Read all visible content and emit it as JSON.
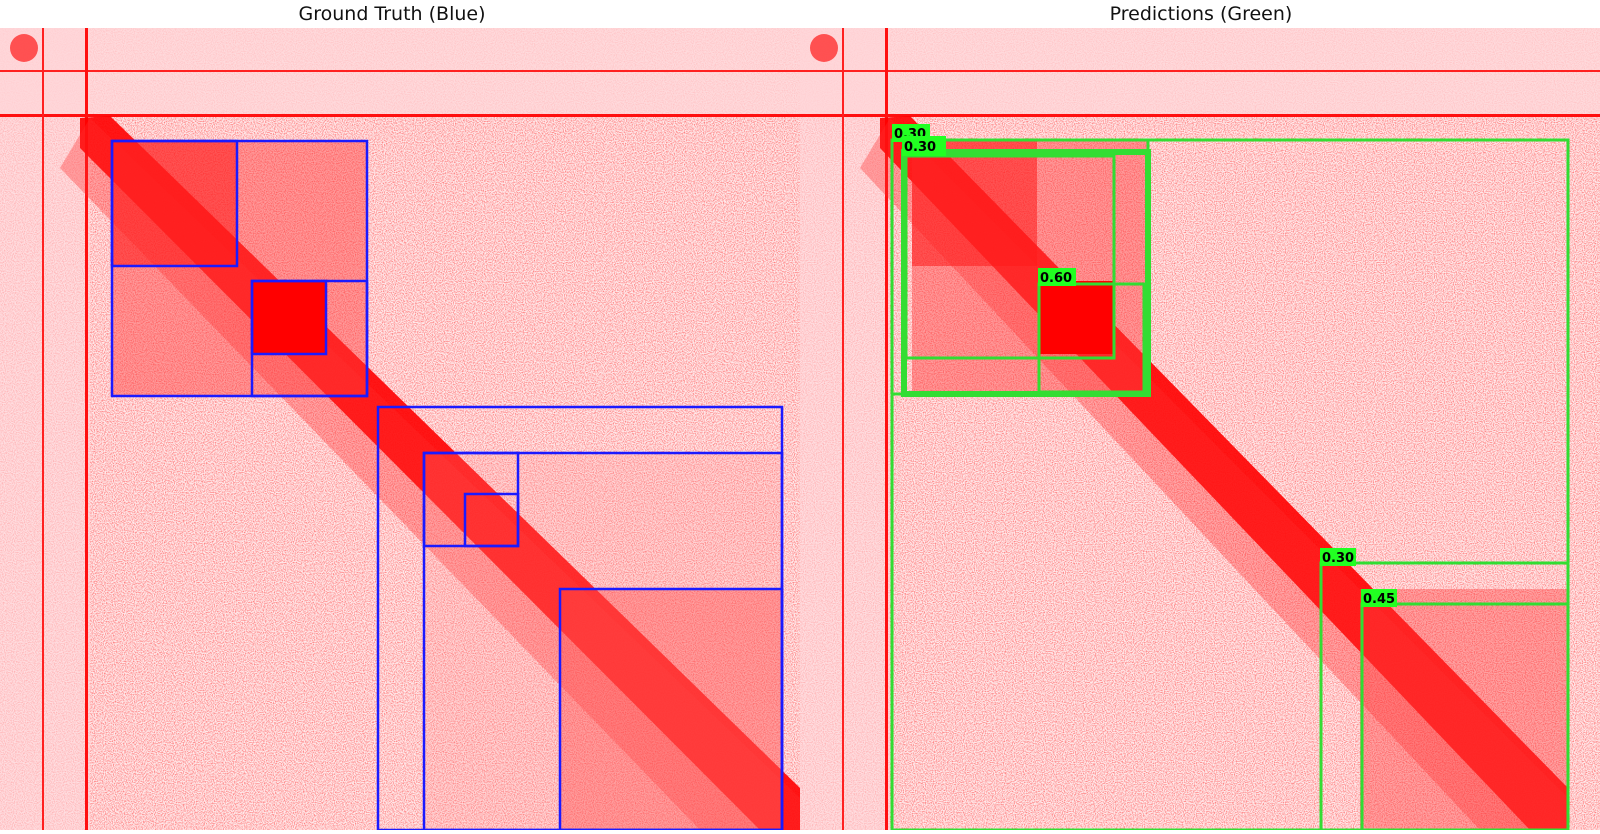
{
  "titles": {
    "left": "Ground Truth (Blue)",
    "right": "Predictions (Green)"
  },
  "colors": {
    "heatmap": "#ff0000",
    "background": "#ffffff",
    "ground_truth_box": "#1a1aff",
    "prediction_box": "#33dd33",
    "label_bg": "#22ff22",
    "label_text": "#000000"
  },
  "prediction_labels": [
    "0.30",
    "0.30",
    "0.60",
    "0.30",
    "0.45"
  ]
}
